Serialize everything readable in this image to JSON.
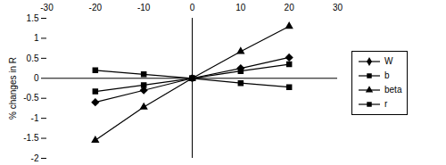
{
  "chart_data": {
    "type": "line",
    "x": [
      -20,
      -10,
      0,
      10,
      20
    ],
    "y_label": "% changes in R",
    "xlim": [
      -30,
      30
    ],
    "xticks": [
      -30,
      -20,
      -10,
      0,
      10,
      20,
      30
    ],
    "ylim": [
      -2,
      1.5
    ],
    "yticks": [
      -2,
      -1.5,
      -1,
      -0.5,
      0,
      0.5,
      1,
      1.5
    ],
    "legend": "right",
    "series": [
      {
        "name": "W",
        "color": "#000000",
        "marker": "diamond",
        "values": [
          -0.6,
          -0.3,
          0,
          0.25,
          0.52
        ]
      },
      {
        "name": "b",
        "color": "#000000",
        "marker": "square",
        "values": [
          -0.33,
          -0.17,
          0,
          0.18,
          0.35
        ]
      },
      {
        "name": "beta",
        "color": "#000000",
        "marker": "triangle",
        "values": [
          -1.55,
          -0.72,
          0,
          0.67,
          1.3
        ]
      },
      {
        "name": "r",
        "color": "#000000",
        "marker": "square",
        "values": [
          0.2,
          0.1,
          0,
          -0.12,
          -0.22
        ]
      }
    ]
  }
}
